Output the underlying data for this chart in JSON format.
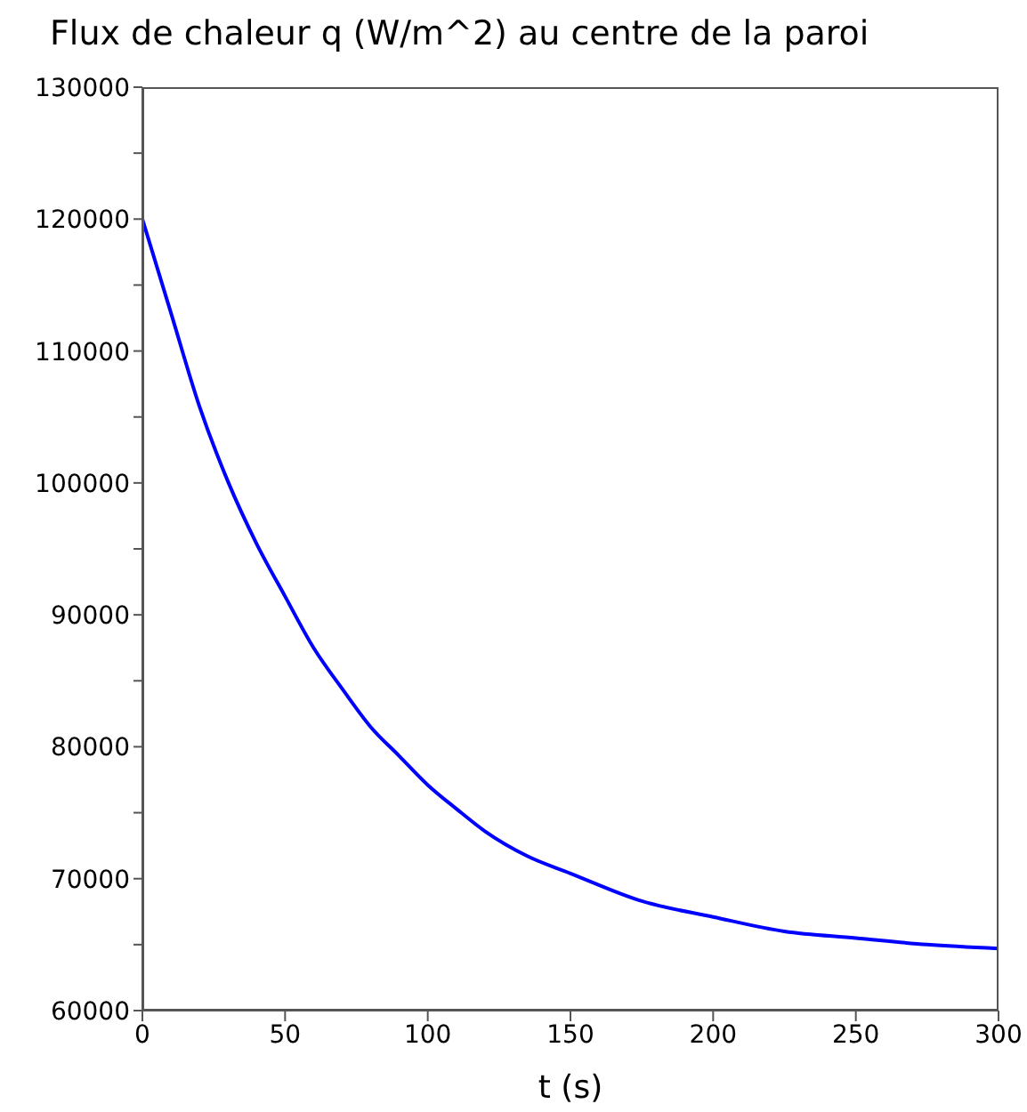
{
  "chart_data": {
    "type": "line",
    "title": "Flux de chaleur q (W/m^2) au centre de la paroi",
    "xlabel": "t (s)",
    "x": [
      0,
      10,
      20,
      30,
      40,
      50,
      60,
      70,
      80,
      90,
      100,
      110,
      120,
      135,
      150,
      175,
      200,
      225,
      250,
      275,
      300
    ],
    "series": [
      {
        "color": "#0000ff",
        "values": [
          120000,
          112900,
          105800,
          100100,
          95400,
          91400,
          87500,
          84400,
          81500,
          79300,
          77100,
          75300,
          73600,
          71700,
          70400,
          68300,
          67100,
          66000,
          65500,
          65000,
          64700
        ]
      }
    ],
    "xlim": [
      0,
      300
    ],
    "xticks": [
      0,
      50,
      100,
      150,
      200,
      250,
      300
    ],
    "ylim": [
      60000,
      130000
    ],
    "yticks": [
      60000,
      {
        "value": 65000,
        "label": null
      },
      70000,
      {
        "value": 75000,
        "label": null
      },
      80000,
      {
        "value": 85000,
        "label": null
      },
      90000,
      {
        "value": 95000,
        "label": null
      },
      100000,
      {
        "value": 105000,
        "label": null
      },
      110000,
      {
        "value": 115000,
        "label": null
      },
      120000,
      {
        "value": 125000,
        "label": null
      },
      130000
    ],
    "marker": "none",
    "line_style": "solid"
  }
}
